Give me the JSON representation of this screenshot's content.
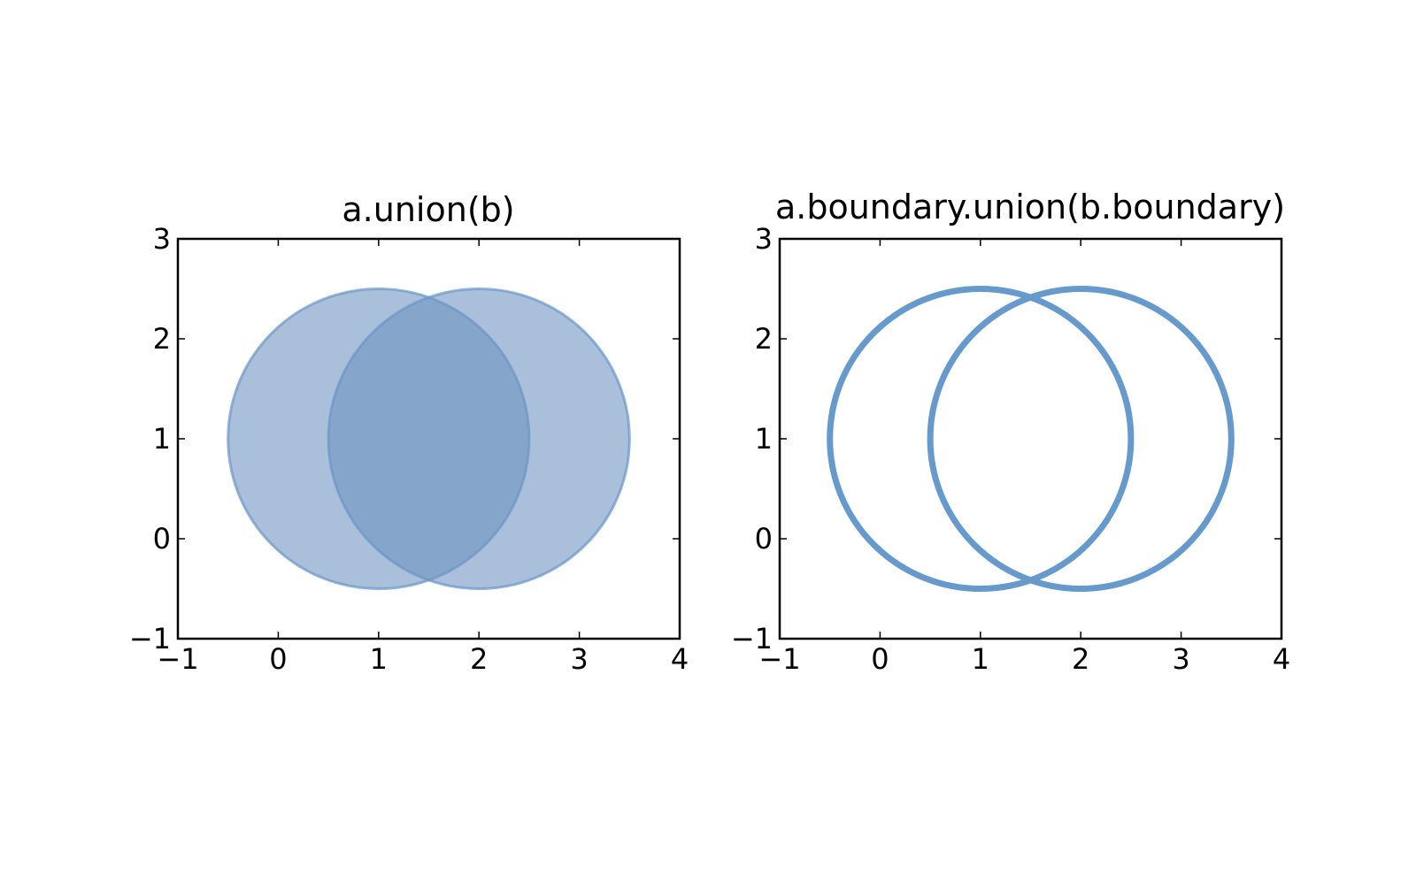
{
  "chart_data": [
    {
      "type": "area",
      "title": "a.union(b)",
      "xlabel": "",
      "ylabel": "",
      "xlim": [
        -1,
        4
      ],
      "ylim": [
        -1,
        3
      ],
      "xticks": [
        -1,
        0,
        1,
        2,
        3,
        4
      ],
      "yticks": [
        -1,
        0,
        1,
        2,
        3
      ],
      "xtick_labels": [
        "−1",
        "0",
        "1",
        "2",
        "3",
        "4"
      ],
      "ytick_labels": [
        "−1",
        "0",
        "1",
        "2",
        "3"
      ],
      "grid": false,
      "shapes": [
        {
          "kind": "filled-circle",
          "cx": 1,
          "cy": 1,
          "r": 1.5
        },
        {
          "kind": "filled-circle",
          "cx": 2,
          "cy": 1,
          "r": 1.5
        }
      ],
      "fill_color": "#6f95c2",
      "edge_color": "#6a96c8"
    },
    {
      "type": "line",
      "title": "a.boundary.union(b.boundary)",
      "xlabel": "",
      "ylabel": "",
      "xlim": [
        -1,
        4
      ],
      "ylim": [
        -1,
        3
      ],
      "xticks": [
        -1,
        0,
        1,
        2,
        3,
        4
      ],
      "yticks": [
        -1,
        0,
        1,
        2,
        3
      ],
      "xtick_labels": [
        "−1",
        "0",
        "1",
        "2",
        "3",
        "4"
      ],
      "ytick_labels": [
        "−1",
        "0",
        "1",
        "2",
        "3"
      ],
      "grid": false,
      "shapes": [
        {
          "kind": "circle-outline",
          "cx": 1,
          "cy": 1,
          "r": 1.5
        },
        {
          "kind": "circle-outline",
          "cx": 2,
          "cy": 1,
          "r": 1.5
        }
      ],
      "line_color": "#6699cc"
    }
  ]
}
